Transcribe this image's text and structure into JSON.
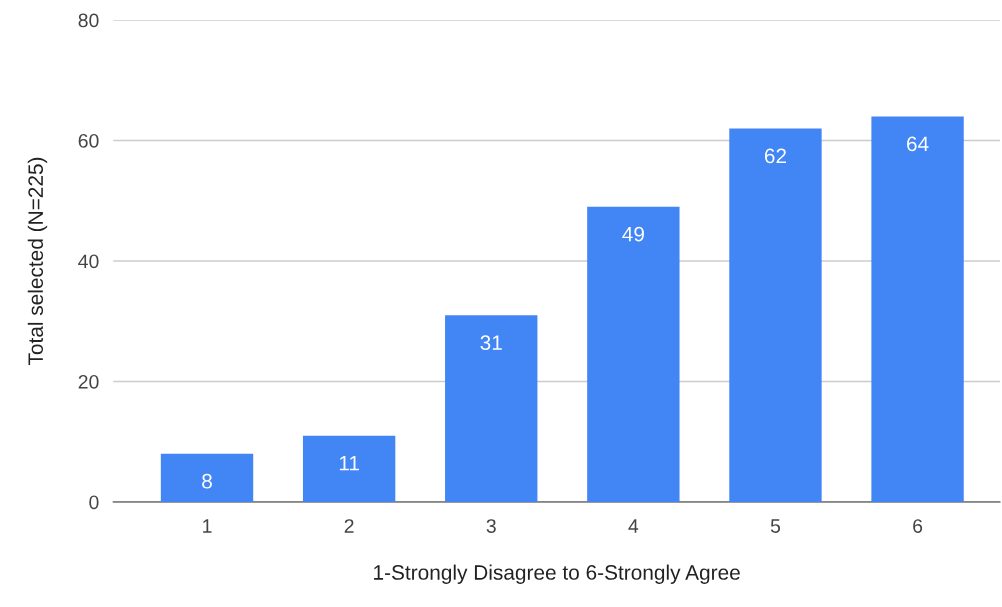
{
  "chart_data": {
    "type": "bar",
    "xlabel": "1-Strongly Disagree to 6-Strongly Agree",
    "ylabel": "Total selected (N=225)",
    "categories": [
      "1",
      "2",
      "3",
      "4",
      "5",
      "6"
    ],
    "values": [
      8,
      11,
      31,
      49,
      62,
      64
    ],
    "color": "#4285f4",
    "ylim": [
      0,
      80
    ],
    "yticks": [
      0,
      20,
      40,
      60,
      80
    ],
    "grid": "y",
    "data_labels": true
  }
}
